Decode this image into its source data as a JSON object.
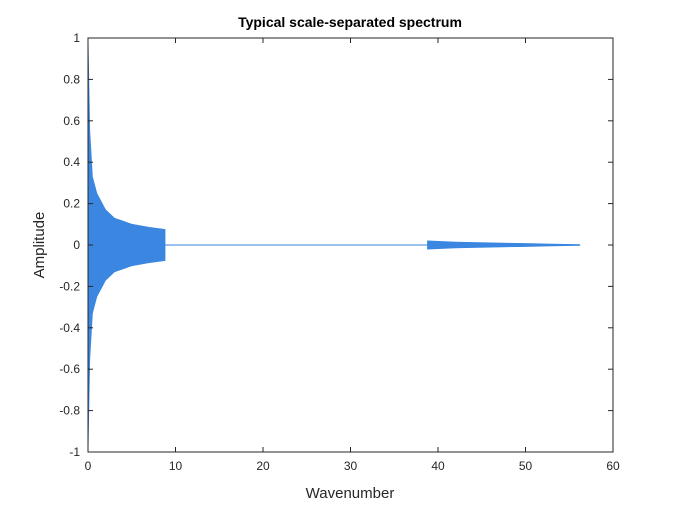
{
  "chart_data": {
    "type": "line",
    "title": "Typical scale-separated spectrum",
    "xlabel": "Wavenumber",
    "ylabel": "Amplitude",
    "xlim": [
      0,
      60
    ],
    "ylim": [
      -1,
      1
    ],
    "xticks": [
      "0",
      "10",
      "20",
      "30",
      "40",
      "50",
      "60"
    ],
    "yticks": [
      "1",
      "0.8",
      "0.6",
      "0.4",
      "0.2",
      "0",
      "-0.2",
      "-0.4",
      "-0.6",
      "-0.8",
      "-1"
    ],
    "grid": false,
    "series": [
      {
        "color": "#3a86e0",
        "segments": [
          {
            "x_start": 0,
            "x_end": 8.8,
            "envelope": [
              [
                0,
                1.0
              ],
              [
                0.2,
                0.55
              ],
              [
                0.5,
                0.33
              ],
              [
                1,
                0.25
              ],
              [
                2,
                0.17
              ],
              [
                3,
                0.13
              ],
              [
                5,
                0.1
              ],
              [
                7,
                0.085
              ],
              [
                8.8,
                0.075
              ]
            ]
          },
          {
            "x_start": 8.8,
            "x_end": 38.8,
            "envelope": [
              [
                8.8,
                0.0
              ],
              [
                38.8,
                0.0
              ]
            ]
          },
          {
            "x_start": 38.8,
            "x_end": 56.2,
            "envelope": [
              [
                38.8,
                0.02
              ],
              [
                42,
                0.014
              ],
              [
                46,
                0.01
              ],
              [
                50,
                0.007
              ],
              [
                53,
                0.004
              ],
              [
                56.2,
                0.002
              ]
            ]
          }
        ]
      }
    ]
  }
}
